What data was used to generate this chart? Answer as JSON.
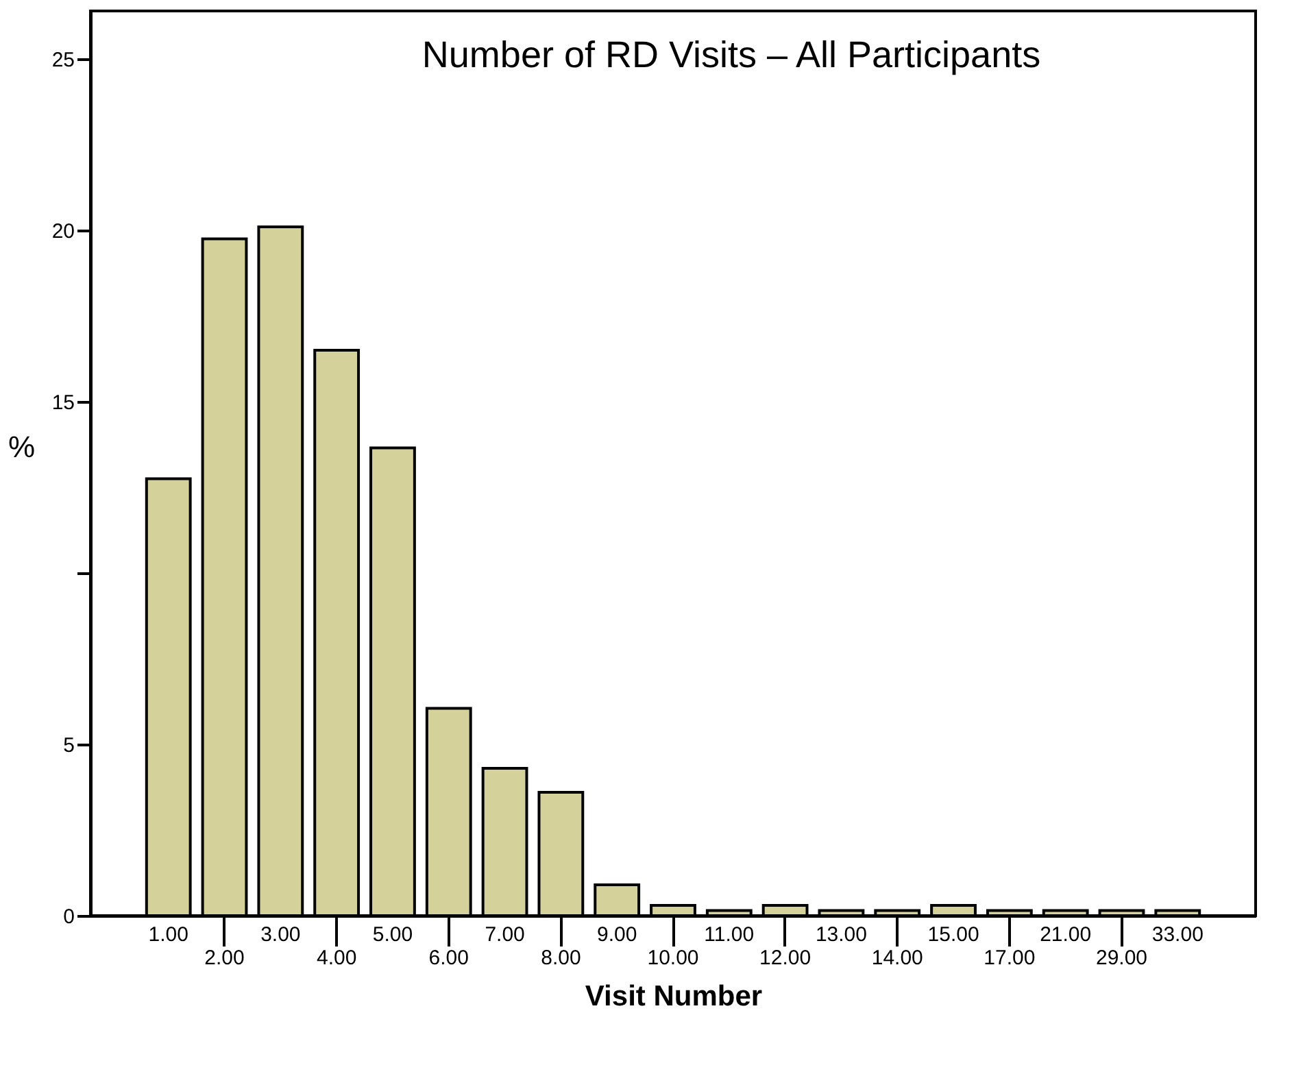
{
  "chart_data": {
    "type": "bar",
    "title": "Number of RD Visits – All Participants",
    "xlabel": "Visit Number",
    "ylabel": "%",
    "categories": [
      "1.00",
      "2.00",
      "3.00",
      "4.00",
      "5.00",
      "6.00",
      "7.00",
      "8.00",
      "9.00",
      "10.00",
      "11.00",
      "12.00",
      "13.00",
      "14.00",
      "15.00",
      "17.00",
      "21.00",
      "29.00",
      "33.00"
    ],
    "values": [
      12.75,
      19.75,
      20.1,
      16.5,
      13.65,
      6.05,
      4.3,
      3.6,
      0.9,
      0.3,
      0.15,
      0.3,
      0.15,
      0.15,
      0.3,
      0.15,
      0.15,
      0.15,
      0.15
    ],
    "color": "#d5d19b",
    "ylim": [
      0,
      26.4
    ],
    "yticks": [
      0,
      5,
      {
        "value": 10,
        "label": null
      },
      15,
      20,
      25
    ],
    "grid": false
  }
}
